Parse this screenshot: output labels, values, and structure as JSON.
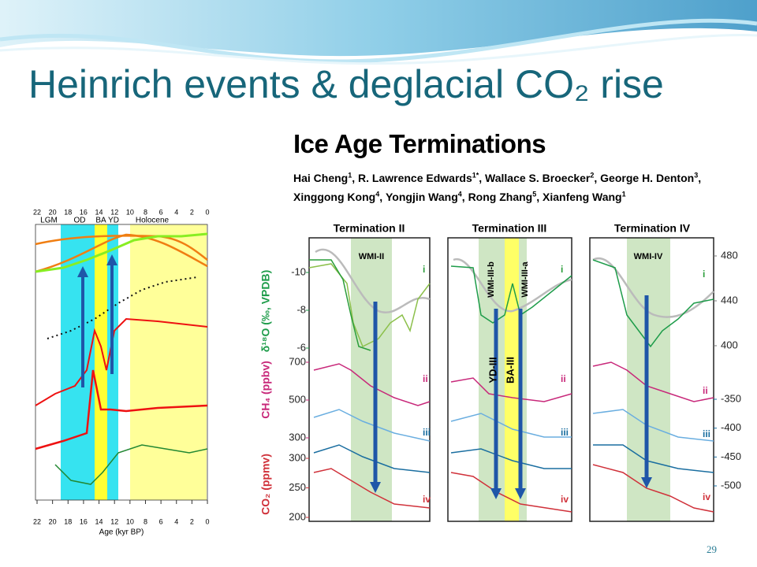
{
  "slide": {
    "title": "Heinrich events & deglacial CO₂ rise",
    "page_number": "29"
  },
  "paper": {
    "title": "Ice Age Terminations",
    "authors": [
      {
        "name": "Hai Cheng",
        "affil": "1"
      },
      {
        "name": "R. Lawrence Edwards",
        "affil": "1*"
      },
      {
        "name": "Wallace S. Broecker",
        "affil": "2"
      },
      {
        "name": "George H. Denton",
        "affil": "3"
      },
      {
        "name": "Xinggong Kong",
        "affil": "4"
      },
      {
        "name": "Yongjin Wang",
        "affil": "4"
      },
      {
        "name": "Rong Zhang",
        "affil": "5"
      },
      {
        "name": "Xianfeng Wang",
        "affil": "1"
      }
    ]
  },
  "left_figure": {
    "periods": [
      "LGM",
      "OD",
      "BA",
      "YD",
      "Holocene"
    ],
    "age_ticks": [
      22,
      20,
      18,
      16,
      14,
      12,
      10,
      8,
      6,
      4,
      2,
      0
    ],
    "x_label": "Age (kyr BP)"
  },
  "right_figure": {
    "panels": [
      {
        "title": "Termination II",
        "bands": [
          "WMI-II"
        ]
      },
      {
        "title": "Termination III",
        "bands": [
          "WMI-III-b",
          "WMI-III-a",
          "YD-III",
          "BA-III"
        ]
      },
      {
        "title": "Termination IV",
        "bands": [
          "WMI-IV"
        ]
      }
    ],
    "curve_labels": [
      "i",
      "ii",
      "iii",
      "iv"
    ],
    "axis_labels": {
      "d18o": "δ¹⁸O (‰, VPDB)",
      "ch4": "CH₄ (ppbv)",
      "co2": "CO₂ (ppmv)"
    },
    "d18o_ticks": [
      -10,
      -8,
      -6
    ],
    "ch4_ticks": [
      700,
      500,
      300
    ],
    "co2_ticks": [
      300,
      250,
      200
    ],
    "right_ticks_top": [
      480,
      440,
      400
    ],
    "right_ticks_bottom": [
      -350,
      -400,
      -450,
      -500
    ]
  }
}
